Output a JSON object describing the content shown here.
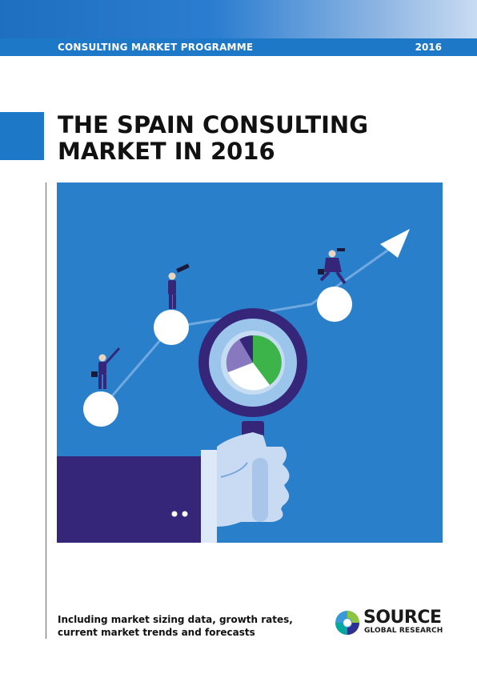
{
  "header": {
    "programme_label": "CONSULTING MARKET PROGRAMME",
    "year": "2016"
  },
  "title": {
    "line1": "THE SPAIN CONSULTING",
    "line2": "MARKET IN 2016"
  },
  "tagline": {
    "line1": "Including market sizing data, growth rates,",
    "line2": "current market trends and forecasts"
  },
  "logo": {
    "word": "SOURCE",
    "sub": "GLOBAL RESEARCH"
  },
  "colors": {
    "brand_blue": "#1e78c8",
    "illustration_bg": "#2a7fcb",
    "navy": "#35267a",
    "pie_green": "#3cb44a"
  }
}
